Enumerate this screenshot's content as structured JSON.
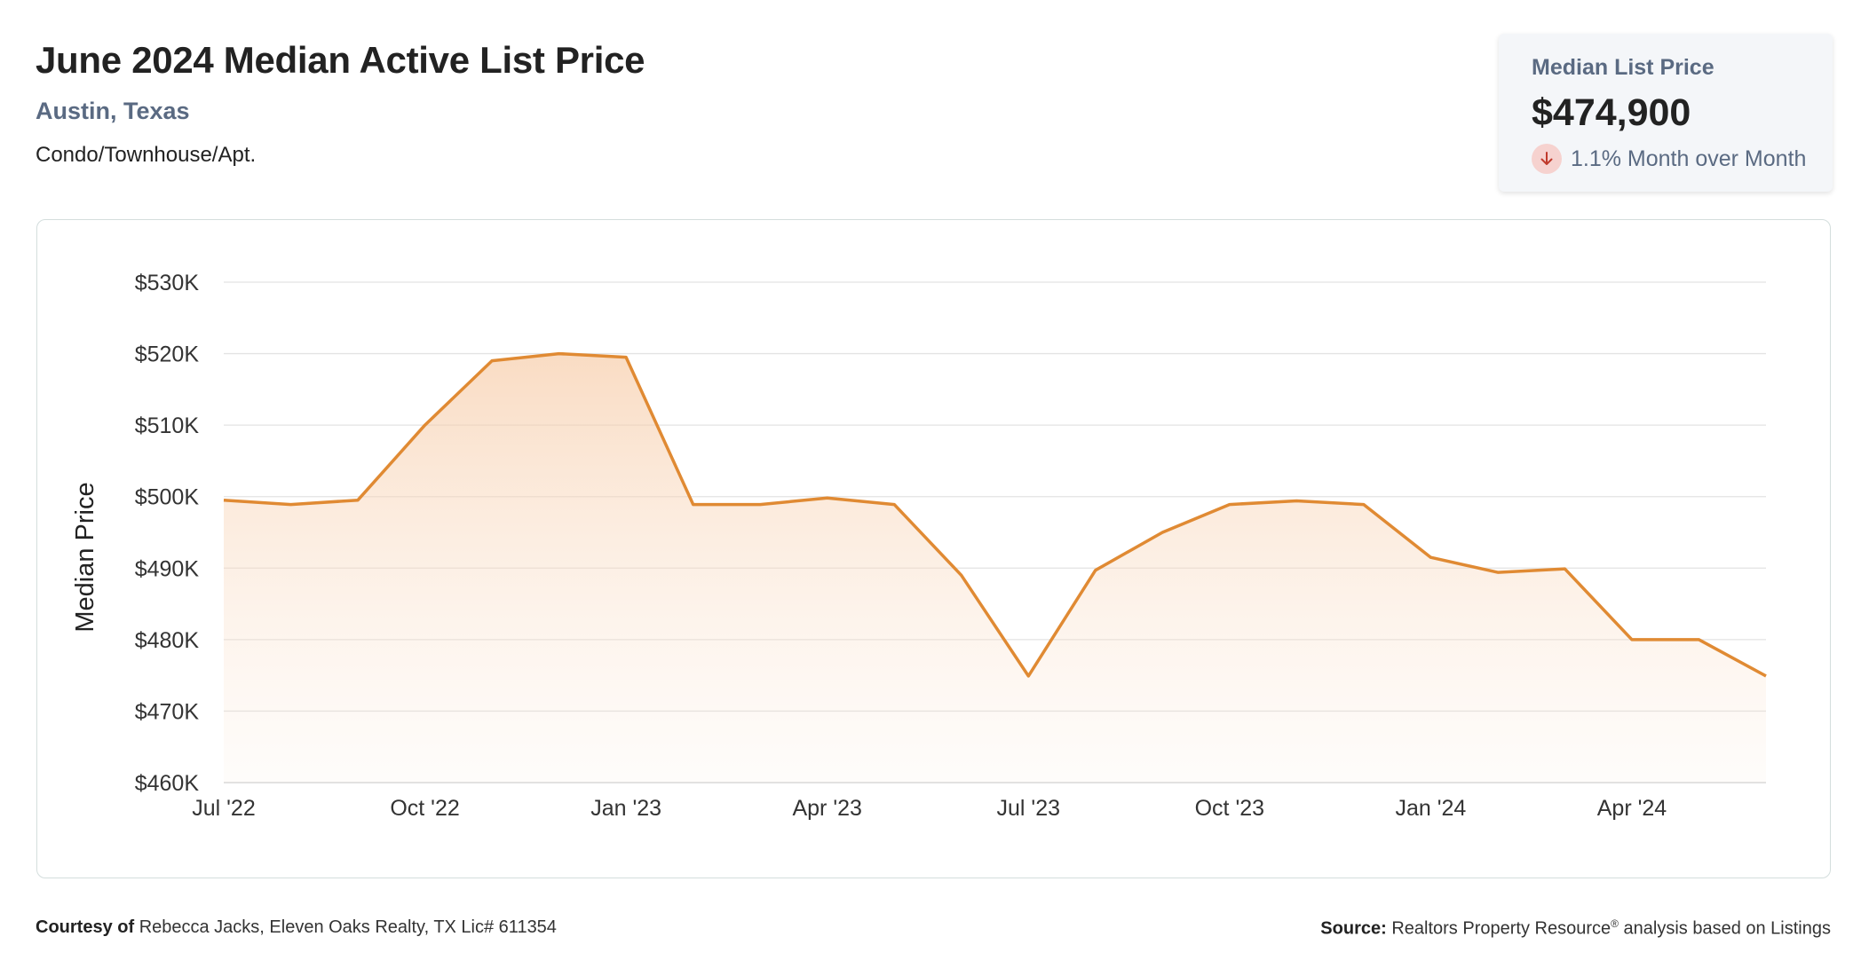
{
  "header": {
    "title": "June 2024 Median Active List Price",
    "location": "Austin, Texas",
    "property_type": "Condo/Townhouse/Apt."
  },
  "stat_card": {
    "label": "Median List Price",
    "value": "$474,900",
    "change_text": "1.1% Month over Month",
    "change_direction": "down",
    "change_icon": "arrow-down-icon"
  },
  "chart_data": {
    "type": "area",
    "x": [
      "Jul '22",
      "Aug '22",
      "Sep '22",
      "Oct '22",
      "Nov '22",
      "Dec '22",
      "Jan '23",
      "Feb '23",
      "Mar '23",
      "Apr '23",
      "May '23",
      "Jun '23",
      "Jul '23",
      "Aug '23",
      "Sep '23",
      "Oct '23",
      "Nov '23",
      "Dec '23",
      "Jan '24",
      "Feb '24",
      "Mar '24",
      "Apr '24",
      "May '24",
      "Jun '24"
    ],
    "values": [
      499500,
      498900,
      499500,
      510000,
      519000,
      520000,
      519500,
      498900,
      498900,
      499800,
      498900,
      489000,
      474900,
      489700,
      495000,
      498900,
      499400,
      498900,
      491500,
      489400,
      489900,
      480000,
      480000,
      474900
    ],
    "x_tick_labels": [
      "Jul '22",
      "Oct '22",
      "Jan '23",
      "Apr '23",
      "Jul '23",
      "Oct '23",
      "Jan '24",
      "Apr '24"
    ],
    "y_tick_labels": [
      "$460K",
      "$470K",
      "$480K",
      "$490K",
      "$500K",
      "$510K",
      "$520K",
      "$530K"
    ],
    "ylim": [
      460000,
      530000
    ],
    "ylabel": "Median Price",
    "xlabel": "",
    "grid": true,
    "line_color": "#e08a33"
  },
  "footer": {
    "courtesy_label": "Courtesy of",
    "courtesy_text": "Rebecca Jacks, Eleven Oaks Realty, TX Lic# 611354",
    "source_label": "Source:",
    "source_text": "Realtors Property Resource",
    "source_reg": "®",
    "source_suffix": "analysis based on Listings"
  }
}
